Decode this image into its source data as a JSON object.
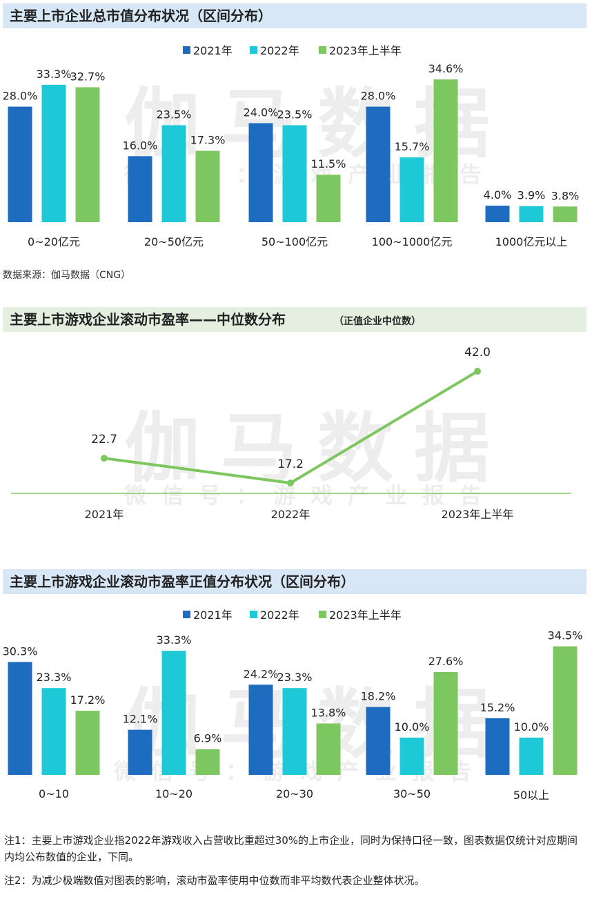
{
  "watermark": {
    "main": "伽马数据",
    "sub": "微信号：游戏产业报告"
  },
  "colors": {
    "2021年": "#1e6cbf",
    "2022年": "#1dc9d6",
    "2023年上半年": "#7cc760",
    "header_blue": "#d7e7f6",
    "header_green": "#e4f0df"
  },
  "source": "数据来源：伽马数据（CNG）",
  "notes": [
    "注1：主要上市游戏企业指2022年游戏收入占营收比重超过30%的上市企业，同时为保持口径一致，图表数据仅统计对应期间内均公布数值的企业，下同。",
    "注2：为减少极端数值对图表的影响，滚动市盈率使用中位数而非平均数代表企业整体状况。"
  ],
  "chart_data": [
    {
      "type": "bar",
      "title": "主要上市企业总市值分布状况（区间分布）",
      "categories": [
        "0~20亿元",
        "20~50亿元",
        "50~100亿元",
        "100~1000亿元",
        "1000亿元以上"
      ],
      "series": [
        {
          "name": "2021年",
          "values": [
            28.0,
            16.0,
            24.0,
            28.0,
            4.0
          ]
        },
        {
          "name": "2022年",
          "values": [
            33.3,
            23.5,
            23.5,
            15.7,
            3.9
          ]
        },
        {
          "name": "2023年上半年",
          "values": [
            32.7,
            17.3,
            11.5,
            34.6,
            3.8
          ]
        }
      ],
      "unit": "%",
      "legend": "top-center",
      "grid": false
    },
    {
      "type": "line",
      "title": "主要上市游戏企业滚动市盈率——中位数分布",
      "subtitle": "（正值企业中位数）",
      "categories": [
        "2021年",
        "2022年",
        "2023年上半年"
      ],
      "series": [
        {
          "values": [
            22.7,
            17.2,
            42.0
          ]
        }
      ],
      "grid": false
    },
    {
      "type": "bar",
      "title": "主要上市游戏企业滚动市盈率正值分布状况（区间分布）",
      "categories": [
        "0~10",
        "10~20",
        "20~30",
        "30~50",
        "50以上"
      ],
      "series": [
        {
          "name": "2021年",
          "values": [
            30.3,
            12.1,
            24.2,
            18.2,
            15.2
          ]
        },
        {
          "name": "2022年",
          "values": [
            23.3,
            33.3,
            23.3,
            10.0,
            10.0
          ]
        },
        {
          "name": "2023年上半年",
          "values": [
            17.2,
            6.9,
            13.8,
            27.6,
            34.5
          ]
        }
      ],
      "unit": "%",
      "legend": "top-center",
      "grid": false
    }
  ]
}
